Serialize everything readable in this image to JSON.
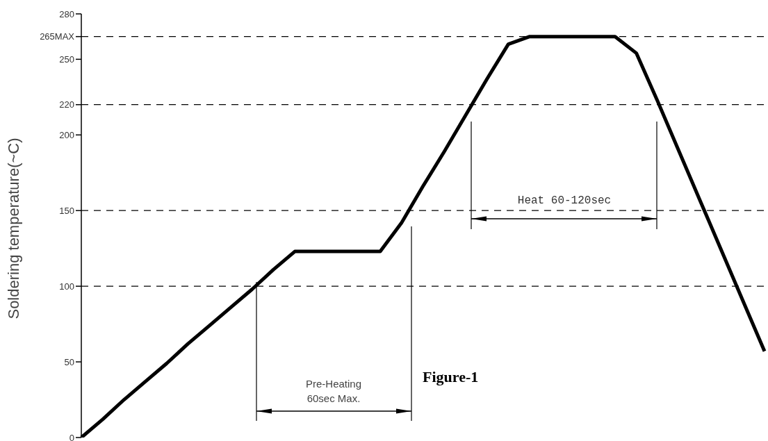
{
  "chart_data": {
    "type": "line",
    "ylabel": "Soldering temperature(~C)",
    "categories": [
      null,
      null,
      null,
      null,
      null,
      null,
      null,
      null,
      null,
      null,
      null,
      null,
      null,
      null,
      null,
      null,
      null,
      null,
      null,
      null,
      null,
      null,
      null,
      null,
      null,
      null,
      null,
      null,
      null,
      null,
      null,
      null,
      null
    ],
    "series": [
      {
        "color": "#000000",
        "values": [
          0,
          12,
          25,
          37,
          49,
          62,
          74,
          86,
          98,
          111,
          123,
          123,
          123,
          123,
          123,
          142,
          166,
          189,
          213,
          237,
          260,
          265,
          265,
          265,
          265,
          265,
          254,
          222,
          189,
          156,
          123,
          90,
          57
        ]
      }
    ],
    "ylim": [
      0,
      280
    ],
    "yticks": [
      0,
      50,
      100,
      150,
      200,
      220,
      250,
      {
        "value": 265,
        "label": "265MAX"
      },
      280
    ],
    "tick_labels": "y",
    "grid": false,
    "legend": false,
    "marker": "none",
    "line_style": "solid",
    "ref_lines": [
      {
        "axis": "y",
        "value": 265,
        "line_style": "dashed"
      },
      {
        "axis": "y",
        "value": 220,
        "line_style": "dashed"
      },
      {
        "axis": "y",
        "value": 150,
        "line_style": "dashed"
      },
      {
        "axis": "y",
        "value": 100,
        "line_style": "dashed"
      }
    ],
    "annotations": [
      "Pre-Heating\n60sec Max.",
      "Heat 60-120sec",
      "Figure-1"
    ]
  }
}
